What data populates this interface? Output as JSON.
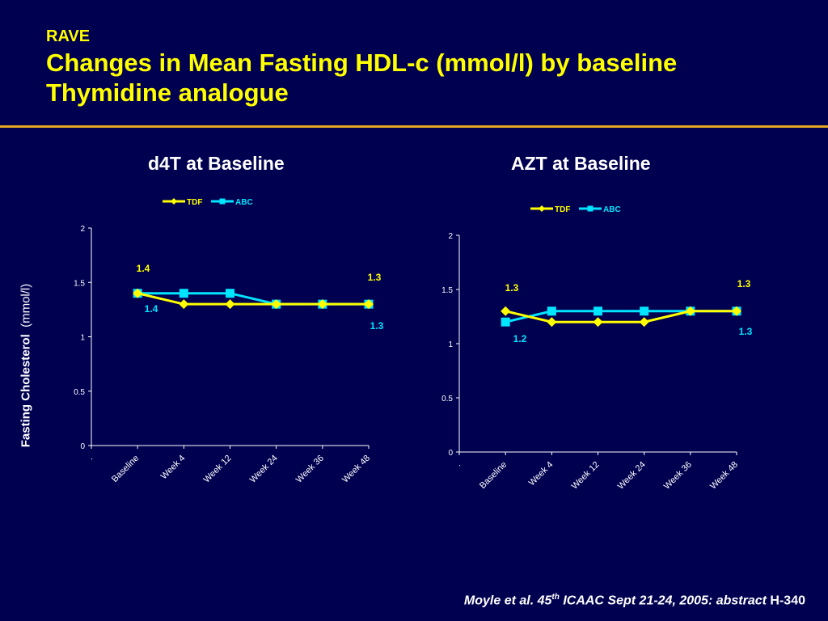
{
  "header": {
    "kicker": "RAVE",
    "title": "Changes in Mean Fasting HDL-c (mmol/l) by baseline Thymidine analogue"
  },
  "y_axis_title": {
    "bold": "Fasting Cholesterol",
    "unit": "(mmol/l)"
  },
  "footer": {
    "prefix": "Moyle et al. 45",
    "sup": "th",
    "middle": " ICAAC Sept 21-24, 2005: abstract ",
    "suffix": "H-340"
  },
  "colors": {
    "background": "#000050",
    "title": "#FFFF00",
    "rule": "#E2A61F",
    "TDF": "#FFFF00",
    "ABC": "#00E5FF",
    "axis": "#FFFFFF"
  },
  "chart_data": [
    {
      "type": "line",
      "title": "d4T at Baseline",
      "categories": [
        ".",
        "Baseline",
        "Week 4",
        "Week 12",
        "Week 24",
        "Week 36",
        "Week 48"
      ],
      "ylim": [
        0,
        2
      ],
      "yticks": [
        "0",
        "0.5",
        "1",
        "1.5",
        "2"
      ],
      "legend": "top",
      "grid": false,
      "series": [
        {
          "name": "TDF",
          "values": [
            null,
            1.4,
            1.3,
            1.3,
            1.3,
            1.3,
            1.3
          ],
          "labels": [
            "1.4",
            "1.3"
          ]
        },
        {
          "name": "ABC",
          "values": [
            null,
            1.4,
            1.4,
            1.4,
            1.3,
            1.3,
            1.3
          ],
          "labels": [
            "1.4",
            "1.3"
          ]
        }
      ]
    },
    {
      "type": "line",
      "title": "AZT at Baseline",
      "categories": [
        ".",
        "Baseline",
        "Week 4",
        "Week 12",
        "Week 24",
        "Week 36",
        "Week 48"
      ],
      "ylim": [
        0,
        2
      ],
      "yticks": [
        "0",
        "0.5",
        "1",
        "1.5",
        "2"
      ],
      "legend": "top",
      "grid": false,
      "series": [
        {
          "name": "TDF",
          "values": [
            null,
            1.3,
            1.2,
            1.2,
            1.2,
            1.3,
            1.3
          ],
          "labels": [
            "1.3",
            "1.3"
          ]
        },
        {
          "name": "ABC",
          "values": [
            null,
            1.2,
            1.3,
            1.3,
            1.3,
            1.3,
            1.3
          ],
          "labels": [
            "1.2",
            "1.3"
          ]
        }
      ]
    }
  ]
}
